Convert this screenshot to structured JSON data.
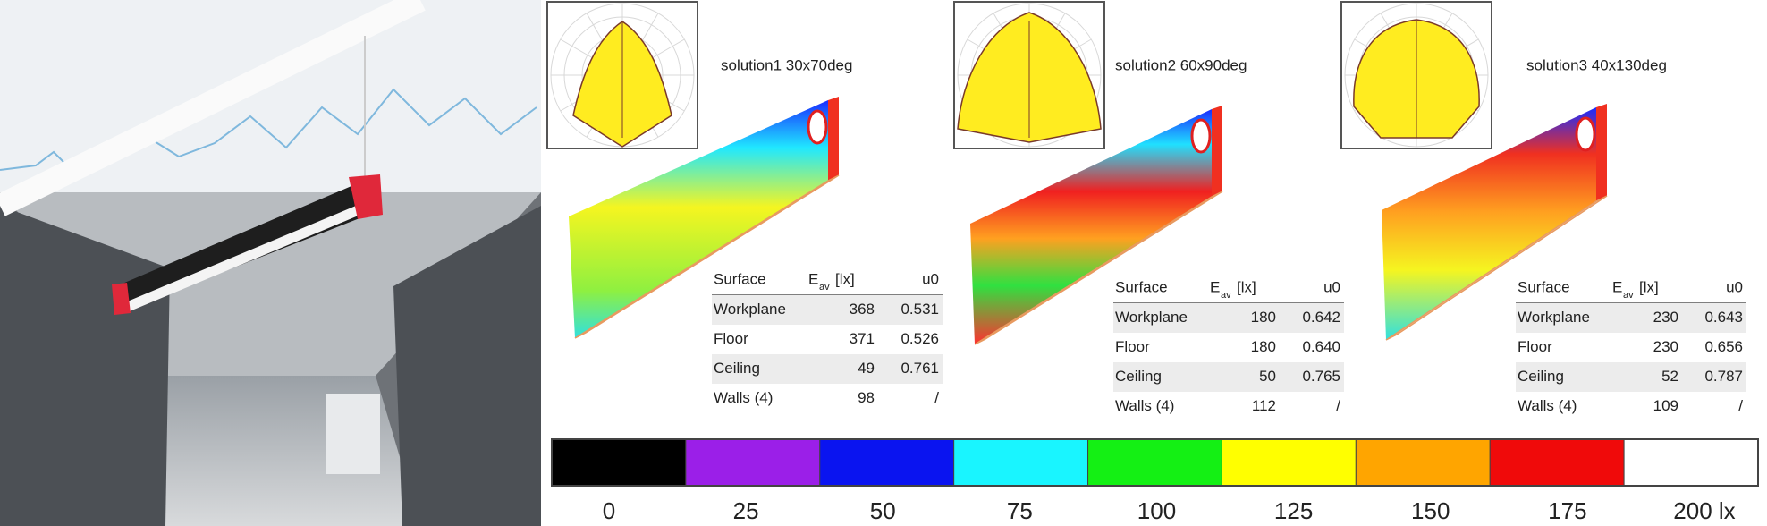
{
  "table_header": {
    "surface": "Surface",
    "e": "E",
    "e_sub": "av",
    "e_unit": "[lx]",
    "u0": "u0"
  },
  "solutions": [
    {
      "label": "solution1 30x70deg",
      "rows": [
        [
          "Workplane",
          "368",
          "0.531"
        ],
        [
          "Floor",
          "371",
          "0.526"
        ],
        [
          "Ceiling",
          "49",
          "0.761"
        ],
        [
          "Walls (4)",
          "98",
          "/"
        ]
      ]
    },
    {
      "label": "solution2 60x90deg",
      "rows": [
        [
          "Workplane",
          "180",
          "0.642"
        ],
        [
          "Floor",
          "180",
          "0.640"
        ],
        [
          "Ceiling",
          "50",
          "0.765"
        ],
        [
          "Walls (4)",
          "112",
          "/"
        ]
      ]
    },
    {
      "label": "solution3 40x130deg",
      "rows": [
        [
          "Workplane",
          "230",
          "0.643"
        ],
        [
          "Floor",
          "230",
          "0.656"
        ],
        [
          "Ceiling",
          "52",
          "0.787"
        ],
        [
          "Walls (4)",
          "109",
          "/"
        ]
      ]
    }
  ],
  "color_scale": {
    "colors": [
      "#000000",
      "#9b1fe8",
      "#0a14f0",
      "#19f5ff",
      "#14f014",
      "#ffff00",
      "#ffa500",
      "#f00a0a",
      "#ffffff"
    ],
    "labels": [
      "0",
      "25",
      "50",
      "75",
      "100",
      "125",
      "150",
      "175",
      "200 lx"
    ]
  }
}
